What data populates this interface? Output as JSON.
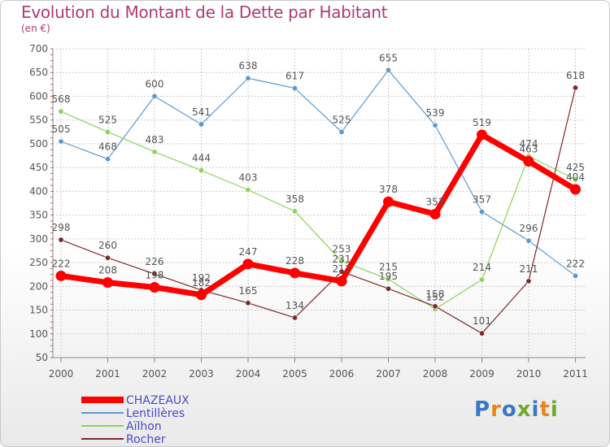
{
  "title": "Evolution du Montant de la Dette par Habitant",
  "subtitle": "(en €)",
  "logo": {
    "text": "Proxiti",
    "colors": [
      "#3a78c8",
      "#e8851e",
      "#3a78c8",
      "#6aaa2e",
      "#3a78c8",
      "#e8851e",
      "#6aaa2e"
    ]
  },
  "chart_data": {
    "type": "line",
    "x": [
      "2000",
      "2001",
      "2002",
      "2003",
      "2004",
      "2005",
      "2006",
      "2007",
      "2008",
      "2009",
      "2010",
      "2011"
    ],
    "yticks": [
      50,
      100,
      150,
      200,
      250,
      300,
      350,
      400,
      450,
      500,
      550,
      600,
      650,
      700
    ],
    "ylim": [
      50,
      700
    ],
    "grid": true,
    "legend_position": "bottom-left",
    "series": [
      {
        "name": "Lentillères",
        "color": "#5a9ad0",
        "values": [
          505,
          468,
          600,
          541,
          638,
          617,
          525,
          655,
          539,
          357,
          296,
          222
        ],
        "labels": [
          "505",
          "468",
          "600",
          "541",
          "638",
          "617",
          "525",
          "655",
          "539",
          "357",
          "296",
          "222"
        ]
      },
      {
        "name": "Aïlhon",
        "color": "#8ed25a",
        "values": [
          568,
          525,
          483,
          444,
          403,
          358,
          253,
          215,
          152,
          214,
          474,
          425
        ],
        "labels": [
          "568",
          "525",
          "483",
          "444",
          "403",
          "358",
          "253",
          "215",
          "152",
          "214",
          "474",
          "425"
        ]
      },
      {
        "name": "Rocher",
        "color": "#7a2a2a",
        "values": [
          298,
          260,
          226,
          192,
          165,
          134,
          231,
          195,
          158,
          101,
          211,
          618
        ],
        "labels": [
          "298",
          "260",
          "226",
          "192",
          "165",
          "134",
          "231",
          "195",
          "158",
          "101",
          "211",
          "618"
        ]
      },
      {
        "name": "CHAZEAUX",
        "color": "#ff0000",
        "values": [
          222,
          208,
          198,
          182,
          247,
          228,
          211,
          378,
          352,
          519,
          463,
          404
        ],
        "labels": [
          "222",
          "208",
          "198",
          "182",
          "247",
          "228",
          "211",
          "378",
          "352",
          "519",
          "463",
          "404"
        ]
      }
    ],
    "legend_order": [
      "CHAZEAUX",
      "Lentillères",
      "Aïlhon",
      "Rocher"
    ]
  }
}
